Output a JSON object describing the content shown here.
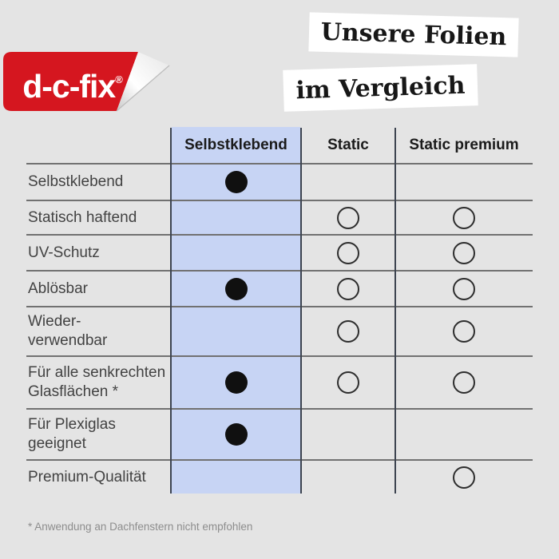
{
  "page": {
    "background": "#e4e4e4"
  },
  "logo": {
    "brand": "d-c-fix",
    "registered_mark": "®",
    "red": "#d5161f"
  },
  "title": {
    "line1": "Unsere Folien",
    "line2": "im Vergleich"
  },
  "chart_data": {
    "type": "table",
    "title": "Unsere Folien im Vergleich",
    "columns": [
      "Selbstklebend",
      "Static",
      "Static premium"
    ],
    "highlighted_column": "Selbstklebend",
    "highlight_color": "#c7d4f4",
    "mark_types": {
      "filled": "black filled dot",
      "open": "outlined circle",
      "none": "empty cell"
    },
    "rows": [
      {
        "label": "Selbstklebend",
        "marks": [
          "filled",
          "none",
          "none"
        ]
      },
      {
        "label": "Statisch haftend",
        "marks": [
          "none",
          "open",
          "open"
        ]
      },
      {
        "label": "UV-Schutz",
        "marks": [
          "none",
          "open",
          "open"
        ]
      },
      {
        "label": "Ablösbar",
        "marks": [
          "filled",
          "open",
          "open"
        ]
      },
      {
        "label": "Wieder-\nverwendbar",
        "marks": [
          "none",
          "open",
          "open"
        ]
      },
      {
        "label": "Für alle senkrechten\nGlasflächen *",
        "marks": [
          "filled",
          "open",
          "open"
        ]
      },
      {
        "label": "Für Plexiglas\ngeeignet",
        "marks": [
          "filled",
          "none",
          "none"
        ]
      },
      {
        "label": "Premium-Qualität",
        "marks": [
          "none",
          "none",
          "open"
        ]
      }
    ]
  },
  "footnote": "* Anwendung an Dachfenstern nicht empfohlen"
}
